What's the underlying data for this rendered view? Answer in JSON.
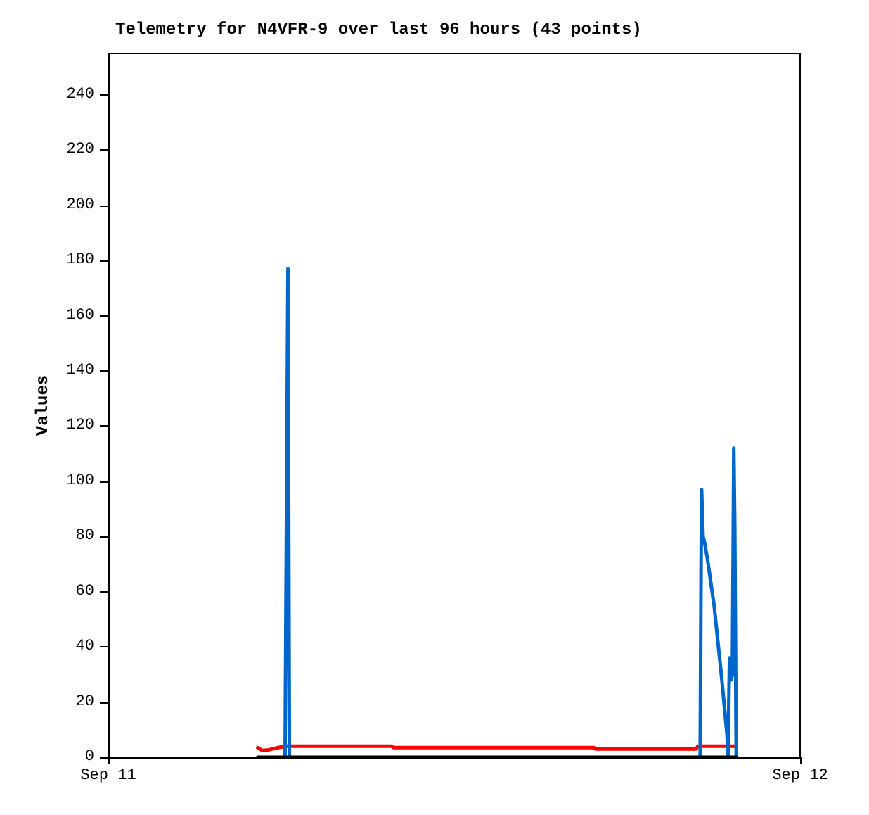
{
  "chart_data": {
    "type": "line",
    "title": "Telemetry for N4VFR-9 over last 96 hours (43 points)",
    "ylabel": "Values",
    "xlim": [
      "--09-11",
      "--09-12"
    ],
    "xticks": [
      {
        "value": "--09-11",
        "label": "Sep 11"
      },
      {
        "value": "--09-12",
        "label": "Sep 12"
      }
    ],
    "ylim": [
      0,
      255
    ],
    "yticks": [
      0,
      20,
      40,
      60,
      80,
      100,
      120,
      140,
      160,
      180,
      200,
      220,
      240
    ],
    "grid": false,
    "marker": "none",
    "line_style": "solid",
    "series": [
      {
        "color": "#ff0000",
        "x": [
          "--09-11T05:11",
          "--09-11T05:20",
          "--09-11T05:34",
          "--09-11T05:54",
          "--09-11T06:08",
          "--09-11T09:50",
          "--09-11T09:53",
          "--09-11T16:51",
          "--09-11T16:54",
          "--09-11T20:24",
          "--09-11T20:27",
          "--09-11T21:44"
        ],
        "values": [
          3.5,
          2.5,
          2.7,
          3.5,
          4,
          4,
          3.5,
          3.5,
          3,
          3,
          4,
          4
        ]
      },
      {
        "color": "#0066cc",
        "x": [
          "--09-11T06:08",
          "--09-11T06:11",
          "--09-11T06:14",
          "--09-11T06:17",
          "--09-11T12:00",
          "--09-11T20:32",
          "--09-11T20:34",
          "--09-11T20:35",
          "--09-11T20:38",
          "--09-11T20:41",
          "--09-11T20:47",
          "--09-11T21:01",
          "--09-11T21:16",
          "--09-11T21:28",
          "--09-11T21:30",
          "--09-11T21:33",
          "--09-11T21:36",
          "--09-11T21:39",
          "--09-11T21:42",
          "--09-11T21:44",
          "--09-11T21:47"
        ],
        "values": [
          0,
          88,
          177,
          0,
          null,
          0,
          73,
          97,
          80,
          78,
          72,
          55,
          30,
          8,
          0,
          36,
          28,
          30,
          112,
          84,
          0
        ]
      },
      {
        "color": "#000000",
        "x": [
          "--09-11T05:11",
          "--09-11T21:47"
        ],
        "values": [
          0,
          0
        ]
      }
    ]
  }
}
